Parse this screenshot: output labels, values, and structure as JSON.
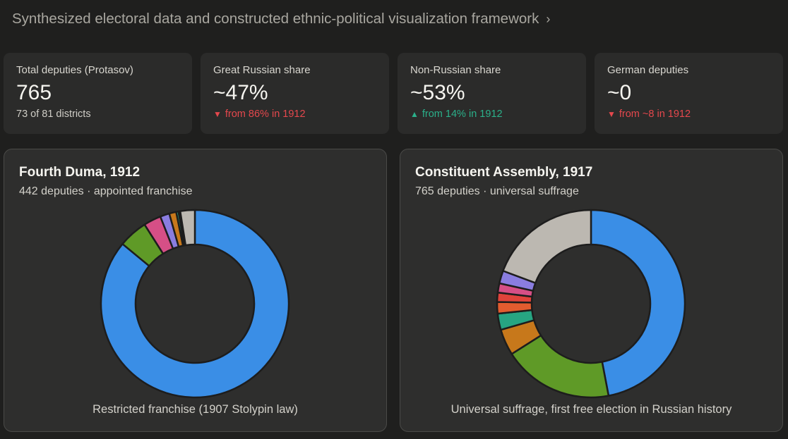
{
  "header": {
    "title": "Synthesized electoral data and constructed ethnic-political visualization framework",
    "chevron": "›"
  },
  "stats": [
    {
      "label": "Total deputies (Protasov)",
      "value": "765",
      "sub": "73 of 81 districts",
      "trend": "none"
    },
    {
      "label": "Great Russian share",
      "value": "~47%",
      "sub": "from 86% in 1912",
      "trend": "down",
      "arrow": "▼"
    },
    {
      "label": "Non-Russian share",
      "value": "~53%",
      "sub": "from 14% in 1912",
      "trend": "up",
      "arrow": "▲"
    },
    {
      "label": "German deputies",
      "value": "~0",
      "sub": "from ~8 in 1912",
      "trend": "down",
      "arrow": "▼"
    }
  ],
  "chart_data": [
    {
      "type": "pie",
      "title": "Fourth Duma, 1912",
      "subtitle": "442 deputies · appointed franchise",
      "caption": "Restricted franchise (1907 Stolypin law)",
      "slices": [
        {
          "value": 86.0,
          "color": "#3a8ee6"
        },
        {
          "value": 5.0,
          "color": "#5f9a27"
        },
        {
          "value": 3.0,
          "color": "#d64f86"
        },
        {
          "value": 1.6,
          "color": "#8a7de0"
        },
        {
          "value": 1.2,
          "color": "#c7781b"
        },
        {
          "value": 0.4,
          "color": "#27a582"
        },
        {
          "value": 0.3,
          "color": "#3b7a3b"
        },
        {
          "value": 2.5,
          "color": "#bcb8b1"
        }
      ]
    },
    {
      "type": "pie",
      "title": "Constituent Assembly, 1917",
      "subtitle": "765 deputies · universal suffrage",
      "caption": "Universal suffrage, first free election in Russian history",
      "slices": [
        {
          "value": 47.0,
          "color": "#3a8ee6"
        },
        {
          "value": 19.0,
          "color": "#5f9a27"
        },
        {
          "value": 4.5,
          "color": "#c7781b"
        },
        {
          "value": 2.8,
          "color": "#27a582"
        },
        {
          "value": 2.0,
          "color": "#e25c2f"
        },
        {
          "value": 1.6,
          "color": "#e0433b"
        },
        {
          "value": 1.6,
          "color": "#d64f86"
        },
        {
          "value": 2.2,
          "color": "#8a7de0"
        },
        {
          "value": 19.3,
          "color": "#bcb8b1"
        }
      ]
    }
  ]
}
